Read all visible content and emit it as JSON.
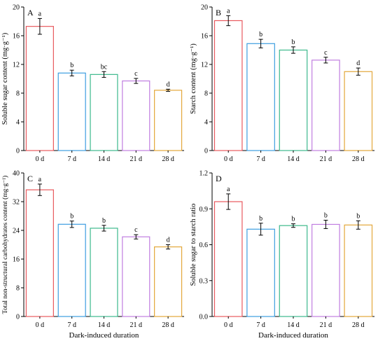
{
  "colors": {
    "0 d": "#e8595e",
    "7 d": "#3d9ee0",
    "14 d": "#3cb98c",
    "21 d": "#c07ee0",
    "28 d": "#e3a73a"
  },
  "chart_data": [
    {
      "type": "bar",
      "panel": "A",
      "categories": [
        "0 d",
        "7 d",
        "14 d",
        "21 d",
        "28 d"
      ],
      "values": [
        17.3,
        10.8,
        10.6,
        9.7,
        8.4
      ],
      "errors": [
        1.1,
        0.4,
        0.4,
        0.35,
        0.15
      ],
      "letters": [
        "a",
        "b",
        "bc",
        "c",
        "d"
      ],
      "xlabel": "",
      "ylabel": "Soluble sugar content (mg·g⁻¹)",
      "ylim": [
        0,
        20
      ],
      "yticks": [
        "0",
        "4",
        "8",
        "12",
        "16",
        "20"
      ]
    },
    {
      "type": "bar",
      "panel": "B",
      "categories": [
        "0 d",
        "7 d",
        "14 d",
        "21 d",
        "28 d"
      ],
      "values": [
        18.1,
        14.9,
        14.0,
        12.6,
        11.0
      ],
      "errors": [
        0.7,
        0.6,
        0.45,
        0.4,
        0.5
      ],
      "letters": [
        "a",
        "b",
        "b",
        "c",
        "d"
      ],
      "xlabel": "",
      "ylabel": "Starch content (mg·g⁻¹)",
      "ylim": [
        0,
        20
      ],
      "yticks": [
        "0",
        "4",
        "8",
        "12",
        "16",
        "20"
      ]
    },
    {
      "type": "bar",
      "panel": "C",
      "categories": [
        "0 d",
        "7 d",
        "14 d",
        "21 d",
        "28 d"
      ],
      "values": [
        35.3,
        25.7,
        24.6,
        22.2,
        19.4
      ],
      "errors": [
        1.6,
        0.9,
        0.8,
        0.6,
        0.6
      ],
      "letters": [
        "a",
        "b",
        "b",
        "c",
        "d"
      ],
      "xlabel": "Dark-induced duration",
      "ylabel": "Total non-structural carbohydrates content (mg·g⁻¹)",
      "ylim": [
        0,
        40
      ],
      "yticks": [
        "0",
        "8",
        "16",
        "24",
        "32",
        "40"
      ]
    },
    {
      "type": "bar",
      "panel": "D",
      "categories": [
        "0 d",
        "7 d",
        "14 d",
        "21 d",
        "28 d"
      ],
      "values": [
        0.96,
        0.73,
        0.76,
        0.77,
        0.765
      ],
      "errors": [
        0.065,
        0.05,
        0.015,
        0.035,
        0.035
      ],
      "letters": [
        "a",
        "b",
        "b",
        "b",
        "b"
      ],
      "xlabel": "Dark-induced duration",
      "ylabel": "Soluble sugar to starch ratio",
      "ylim": [
        0,
        1.2
      ],
      "yticks": [
        "0.0",
        "0.3",
        "0.6",
        "0.9",
        "1.2"
      ]
    }
  ]
}
